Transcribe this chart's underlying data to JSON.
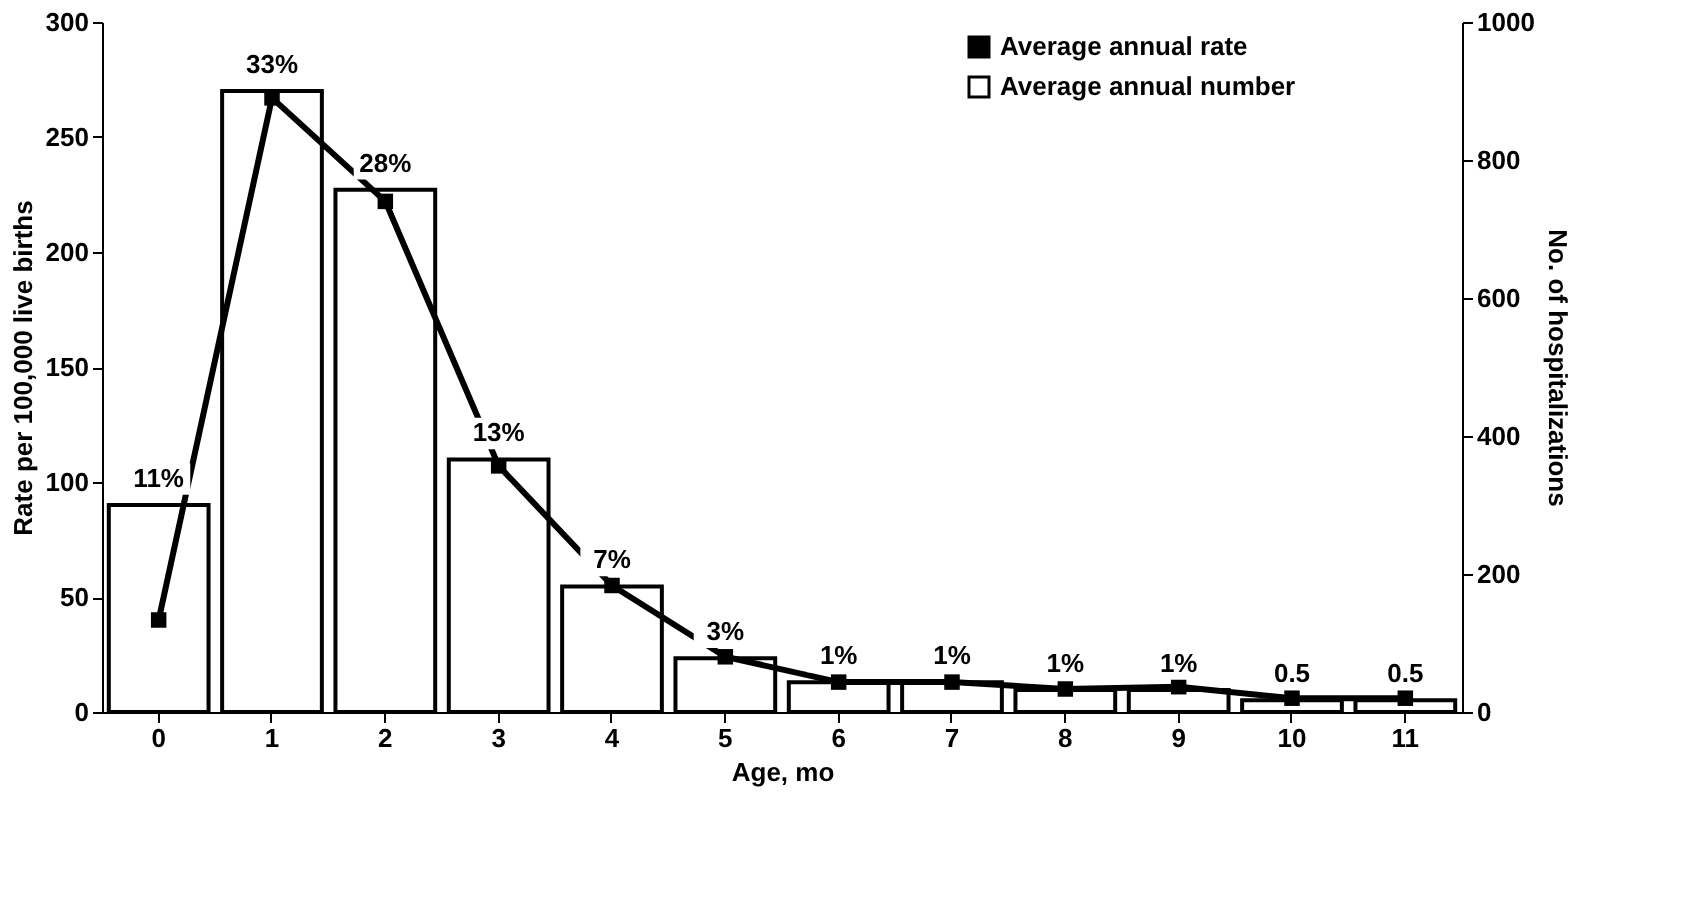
{
  "chart_data": {
    "type": "bar",
    "xlabel": "Age, mo",
    "ylabel": "Rate per 100,000 live births",
    "y2label": "No. of hospitalizations",
    "categories": [
      "0",
      "1",
      "2",
      "3",
      "4",
      "5",
      "6",
      "7",
      "8",
      "9",
      "10",
      "11"
    ],
    "series": [
      {
        "name": "Average annual rate",
        "type": "line",
        "color": "#000000",
        "marker": "square",
        "line_style": "solid",
        "values": [
          40,
          267,
          222,
          107,
          55,
          24,
          13,
          13,
          10,
          11,
          6,
          6
        ]
      },
      {
        "name": "Average annual number",
        "axis": "y2",
        "color": "#ffffff",
        "values": [
          300,
          900,
          757,
          366,
          182,
          78,
          43,
          43,
          32,
          32,
          17,
          17
        ]
      }
    ],
    "annotations": [
      "11%",
      "33%",
      "28%",
      "13%",
      "7%",
      "3%",
      "1%",
      "1%",
      "1%",
      "1%",
      "0.5",
      "0.5"
    ],
    "ylim": [
      0,
      300
    ],
    "yticks": [
      0,
      50,
      100,
      150,
      200,
      250,
      300
    ],
    "y2lim": [
      0,
      1000
    ],
    "y2ticks": [
      0,
      200,
      400,
      600,
      800,
      1000
    ],
    "grid": false,
    "legend": "top right"
  }
}
